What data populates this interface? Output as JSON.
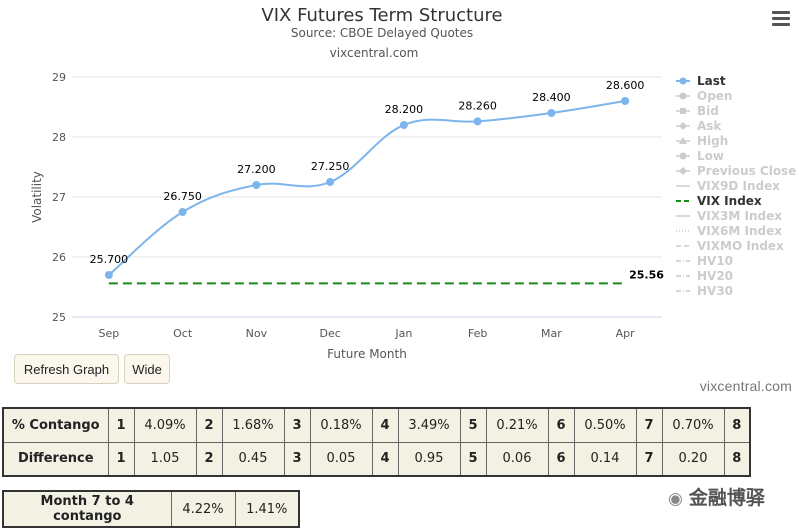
{
  "menu_icon": "hamburger-menu-icon",
  "chart_data": {
    "type": "line",
    "title": "VIX Futures Term Structure",
    "subtitle": "Source: CBOE Delayed Quotes",
    "subtitle2": "vixcentral.com",
    "xlabel": "Future Month",
    "ylabel": "Volatility",
    "categories": [
      "Sep",
      "Oct",
      "Nov",
      "Dec",
      "Jan",
      "Feb",
      "Mar",
      "Apr"
    ],
    "ylim": [
      25,
      29
    ],
    "yticks": [
      25,
      26,
      27,
      28,
      29
    ],
    "grid": true,
    "legend_position": "right",
    "series": [
      {
        "name": "Last",
        "color": "#7cb5ec",
        "values": [
          25.7,
          26.75,
          27.2,
          27.25,
          28.2,
          28.26,
          28.4,
          28.6
        ],
        "labels": [
          "25.700",
          "26.750",
          "27.200",
          "27.250",
          "28.200",
          "28.260",
          "28.400",
          "28.600"
        ]
      },
      {
        "name": "VIX Index",
        "color": "#1a8c1a",
        "style": "dashed",
        "value": 25.56,
        "label": "25.56"
      }
    ],
    "legend": [
      {
        "name": "Last",
        "active": true,
        "symbol": "circle-line"
      },
      {
        "name": "Open",
        "active": false,
        "symbol": "circle-line"
      },
      {
        "name": "Bid",
        "active": false,
        "symbol": "square-line"
      },
      {
        "name": "Ask",
        "active": false,
        "symbol": "diamond-line"
      },
      {
        "name": "High",
        "active": false,
        "symbol": "triangle-line"
      },
      {
        "name": "Low",
        "active": false,
        "symbol": "circle-line"
      },
      {
        "name": "Previous Close",
        "active": false,
        "symbol": "diamond-line"
      },
      {
        "name": "VIX9D Index",
        "active": false,
        "symbol": "line"
      },
      {
        "name": "VIX Index",
        "active": true,
        "symbol": "dash-line",
        "color": "#1a8c1a"
      },
      {
        "name": "VIX3M Index",
        "active": false,
        "symbol": "line"
      },
      {
        "name": "VIX6M Index",
        "active": false,
        "symbol": "dot-line"
      },
      {
        "name": "VIXMO Index",
        "active": false,
        "symbol": "dash-line"
      },
      {
        "name": "HV10",
        "active": false,
        "symbol": "dashdot-line"
      },
      {
        "name": "HV20",
        "active": false,
        "symbol": "dashdot-line"
      },
      {
        "name": "HV30",
        "active": false,
        "symbol": "dashdot-line"
      }
    ]
  },
  "buttons": {
    "refresh": "Refresh Graph",
    "wide": "Wide"
  },
  "credit": "vixcentral.com",
  "contango_table": {
    "rows": [
      {
        "header": "% Contango",
        "cells": [
          {
            "idx": "1",
            "val": "4.09%"
          },
          {
            "idx": "2",
            "val": "1.68%"
          },
          {
            "idx": "3",
            "val": "0.18%"
          },
          {
            "idx": "4",
            "val": "3.49%"
          },
          {
            "idx": "5",
            "val": "0.21%"
          },
          {
            "idx": "6",
            "val": "0.50%"
          },
          {
            "idx": "7",
            "val": "0.70%"
          }
        ],
        "trailing_idx": "8"
      },
      {
        "header": "Difference",
        "cells": [
          {
            "idx": "1",
            "val": "1.05"
          },
          {
            "idx": "2",
            "val": "0.45"
          },
          {
            "idx": "3",
            "val": "0.05"
          },
          {
            "idx": "4",
            "val": "0.95"
          },
          {
            "idx": "5",
            "val": "0.06"
          },
          {
            "idx": "6",
            "val": "0.14"
          },
          {
            "idx": "7",
            "val": "0.20"
          }
        ],
        "trailing_idx": "8"
      }
    ]
  },
  "month_table": {
    "header": "Month 7 to 4 contango",
    "values": [
      "4.22%",
      "1.41%"
    ]
  },
  "watermark": {
    "icon": "wechat-icon",
    "text": "金融博驿"
  }
}
